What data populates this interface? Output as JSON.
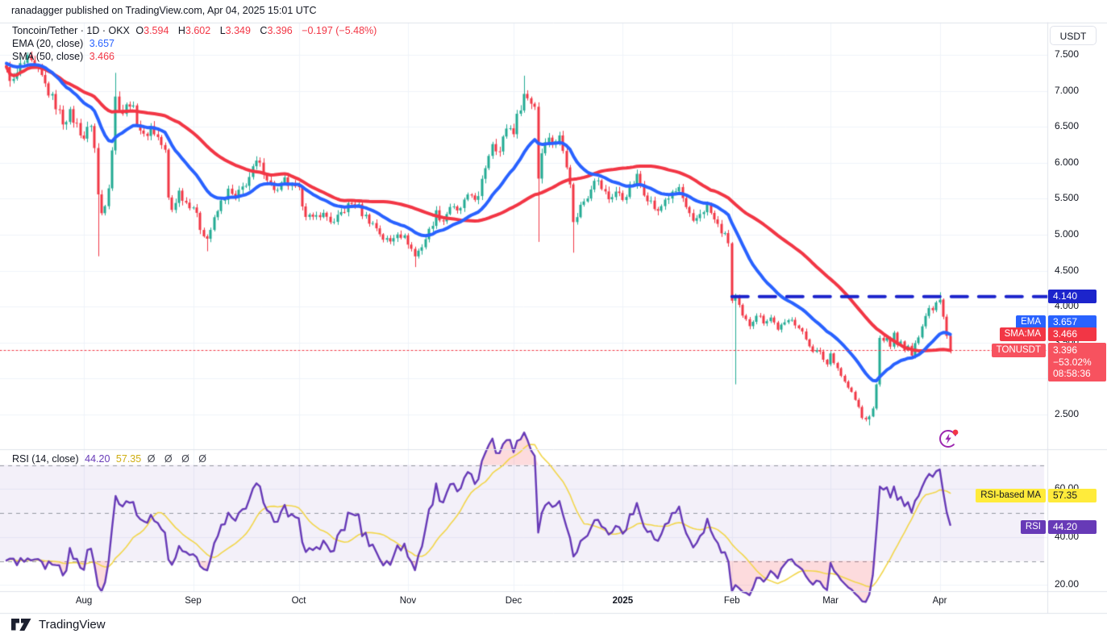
{
  "header": {
    "published_line": "ranadagger published on TradingView.com, Apr 04, 2025 15:01 UTC"
  },
  "symbol_legend": {
    "title": "Toncoin/Tether · 1D · OKX",
    "o_label": "O",
    "o": "3.594",
    "h_label": "H",
    "h": "3.602",
    "l_label": "L",
    "l": "3.349",
    "c_label": "C",
    "c": "3.396",
    "change": "−0.197 (−5.48%)",
    "ema_label": "EMA (20, close)",
    "ema_value": "3.657",
    "sma_label": "SMA (50, close)",
    "sma_value": "3.466"
  },
  "rsi_legend": {
    "label": "RSI (14, close)",
    "rsi_value": "44.20",
    "ma_value": "57.35",
    "empty_values": "Ø Ø Ø Ø"
  },
  "price_axis": {
    "currency_button": "USDT",
    "ticks": [
      {
        "label": "7.500",
        "price": 7.5
      },
      {
        "label": "7.000",
        "price": 7.0
      },
      {
        "label": "6.500",
        "price": 6.5
      },
      {
        "label": "6.000",
        "price": 6.0
      },
      {
        "label": "5.500",
        "price": 5.5
      },
      {
        "label": "5.000",
        "price": 5.0
      },
      {
        "label": "4.500",
        "price": 4.5
      },
      {
        "label": "4.000",
        "price": 4.0
      },
      {
        "label": "3.500",
        "price": 3.5
      },
      {
        "label": "3.000",
        "price": 3.0
      },
      {
        "label": "2.500",
        "price": 2.5
      }
    ]
  },
  "rsi_axis": {
    "ticks": [
      {
        "label": "60.00",
        "value": 60
      },
      {
        "label": "40.00",
        "value": 40
      },
      {
        "label": "20.00",
        "value": 20
      }
    ]
  },
  "price_labels": {
    "level": {
      "text": "4.140",
      "price": 4.14
    },
    "ema": {
      "tag": "EMA",
      "text": "3.657"
    },
    "sma": {
      "tag": "SMA:MA",
      "text": "3.466"
    },
    "last": {
      "tag": "TONUSDT",
      "price_text": "3.396",
      "change_text": "−53.02%",
      "countdown": "08:58:36"
    }
  },
  "rsi_labels": {
    "ma": {
      "tag": "RSI-based MA",
      "text": "57.35",
      "value": 57.35
    },
    "rsi": {
      "tag": "RSI",
      "text": "44.20",
      "value": 44.2
    }
  },
  "footer": {
    "brand": "TradingView"
  },
  "colors": {
    "up": "#22ab94",
    "down": "#f23645",
    "ema": "#2962ff",
    "sma": "#f23645",
    "rsi": "#673ab7",
    "rsi_ma": "#f2d64b",
    "level": "#1c24cc",
    "last_line": "#f23645",
    "grid": "#f0f3fa",
    "band": "rgba(103,58,183,0.08)",
    "guide": "#9598a1",
    "oversold": "rgba(242,54,69,0.18)",
    "border": "#e0e3eb",
    "label_level_bg": "#1c24cc",
    "label_ema_bg": "#2962ff",
    "label_sma_bg": "#f23645",
    "label_last_bg": "#f7525f",
    "label_rsi_bg": "#673ab7",
    "label_rsima_bg": "#ffeb3b"
  },
  "chart_data": {
    "type": "candlestick",
    "title": "Toncoin/Tether · 1D · OKX",
    "symbol": "TONUSDT",
    "exchange": "OKX",
    "interval": "1D",
    "quote_currency": "USDT",
    "price_axis_range_visible": [
      2.2,
      7.6
    ],
    "grid": true,
    "days_total": 269,
    "months": [
      {
        "label": "Aug",
        "day": 22,
        "bold": false
      },
      {
        "label": "Sep",
        "day": 53,
        "bold": false
      },
      {
        "label": "Oct",
        "day": 83,
        "bold": false
      },
      {
        "label": "Nov",
        "day": 114,
        "bold": false
      },
      {
        "label": "Dec",
        "day": 144,
        "bold": false
      },
      {
        "label": "2025",
        "day": 175,
        "bold": true
      },
      {
        "label": "Feb",
        "day": 206,
        "bold": false
      },
      {
        "label": "Mar",
        "day": 234,
        "bold": false
      },
      {
        "label": "Apr",
        "day": 265,
        "bold": false
      }
    ],
    "close_anchors": [
      [
        0,
        7.28
      ],
      [
        2,
        7.12
      ],
      [
        4,
        7.34
      ],
      [
        6,
        7.42
      ],
      [
        8,
        7.3
      ],
      [
        10,
        7.18
      ],
      [
        12,
        6.98
      ],
      [
        14,
        6.8
      ],
      [
        16,
        6.58
      ],
      [
        18,
        6.68
      ],
      [
        20,
        6.52
      ],
      [
        22,
        6.35
      ],
      [
        24,
        6.55
      ],
      [
        25,
        6.2
      ],
      [
        26,
        5.55
      ],
      [
        27,
        5.3
      ],
      [
        28,
        5.45
      ],
      [
        29,
        5.7
      ],
      [
        30,
        6.2
      ],
      [
        31,
        6.9
      ],
      [
        33,
        6.7
      ],
      [
        35,
        6.85
      ],
      [
        37,
        6.6
      ],
      [
        39,
        6.35
      ],
      [
        41,
        6.5
      ],
      [
        43,
        6.35
      ],
      [
        45,
        6.15
      ],
      [
        46,
        5.5
      ],
      [
        47,
        5.35
      ],
      [
        49,
        5.6
      ],
      [
        51,
        5.45
      ],
      [
        53,
        5.4
      ],
      [
        55,
        5.1
      ],
      [
        57,
        4.95
      ],
      [
        59,
        5.2
      ],
      [
        61,
        5.45
      ],
      [
        63,
        5.6
      ],
      [
        65,
        5.5
      ],
      [
        67,
        5.65
      ],
      [
        69,
        5.8
      ],
      [
        71,
        6.0
      ],
      [
        73,
        5.9
      ],
      [
        75,
        5.7
      ],
      [
        77,
        5.6
      ],
      [
        79,
        5.75
      ],
      [
        81,
        5.65
      ],
      [
        83,
        5.6
      ],
      [
        85,
        5.3
      ],
      [
        87,
        5.2
      ],
      [
        89,
        5.3
      ],
      [
        91,
        5.25
      ],
      [
        93,
        5.15
      ],
      [
        95,
        5.3
      ],
      [
        97,
        5.4
      ],
      [
        99,
        5.45
      ],
      [
        101,
        5.3
      ],
      [
        103,
        5.2
      ],
      [
        105,
        5.1
      ],
      [
        107,
        4.95
      ],
      [
        109,
        4.9
      ],
      [
        111,
        5.05
      ],
      [
        113,
        4.95
      ],
      [
        114,
        4.9
      ],
      [
        116,
        4.7
      ],
      [
        118,
        4.85
      ],
      [
        120,
        5.05
      ],
      [
        122,
        5.3
      ],
      [
        124,
        5.2
      ],
      [
        126,
        5.4
      ],
      [
        128,
        5.3
      ],
      [
        130,
        5.45
      ],
      [
        132,
        5.55
      ],
      [
        134,
        5.5
      ],
      [
        136,
        5.95
      ],
      [
        138,
        6.3
      ],
      [
        140,
        6.15
      ],
      [
        142,
        6.5
      ],
      [
        144,
        6.45
      ],
      [
        146,
        6.8
      ],
      [
        147,
        6.95
      ],
      [
        149,
        6.85
      ],
      [
        150,
        6.8
      ],
      [
        151,
        5.8
      ],
      [
        152,
        6.15
      ],
      [
        153,
        6.35
      ],
      [
        155,
        6.3
      ],
      [
        157,
        6.35
      ],
      [
        159,
        6.0
      ],
      [
        160,
        5.75
      ],
      [
        161,
        5.15
      ],
      [
        163,
        5.4
      ],
      [
        165,
        5.55
      ],
      [
        167,
        5.8
      ],
      [
        169,
        5.65
      ],
      [
        171,
        5.5
      ],
      [
        173,
        5.6
      ],
      [
        175,
        5.5
      ],
      [
        177,
        5.65
      ],
      [
        179,
        5.8
      ],
      [
        181,
        5.6
      ],
      [
        183,
        5.45
      ],
      [
        185,
        5.3
      ],
      [
        187,
        5.5
      ],
      [
        189,
        5.55
      ],
      [
        191,
        5.65
      ],
      [
        193,
        5.35
      ],
      [
        195,
        5.15
      ],
      [
        197,
        5.3
      ],
      [
        199,
        5.4
      ],
      [
        201,
        5.2
      ],
      [
        203,
        5.05
      ],
      [
        205,
        4.9
      ],
      [
        206,
        4.08
      ],
      [
        207,
        4.12
      ],
      [
        209,
        3.85
      ],
      [
        211,
        3.75
      ],
      [
        213,
        3.9
      ],
      [
        215,
        3.8
      ],
      [
        217,
        3.85
      ],
      [
        219,
        3.7
      ],
      [
        221,
        3.75
      ],
      [
        223,
        3.85
      ],
      [
        225,
        3.7
      ],
      [
        227,
        3.55
      ],
      [
        229,
        3.4
      ],
      [
        231,
        3.35
      ],
      [
        233,
        3.2
      ],
      [
        234,
        3.35
      ],
      [
        236,
        3.15
      ],
      [
        238,
        2.95
      ],
      [
        240,
        2.8
      ],
      [
        242,
        2.6
      ],
      [
        243,
        2.45
      ],
      [
        245,
        2.45
      ],
      [
        246,
        2.6
      ],
      [
        247,
        2.9
      ],
      [
        248,
        3.6
      ],
      [
        249,
        3.5
      ],
      [
        250,
        3.55
      ],
      [
        251,
        3.45
      ],
      [
        252,
        3.6
      ],
      [
        253,
        3.5
      ],
      [
        254,
        3.55
      ],
      [
        255,
        3.4
      ],
      [
        256,
        3.45
      ],
      [
        257,
        3.35
      ],
      [
        258,
        3.5
      ],
      [
        259,
        3.6
      ],
      [
        260,
        3.75
      ],
      [
        261,
        3.9
      ],
      [
        262,
        4.0
      ],
      [
        263,
        3.95
      ],
      [
        264,
        4.05
      ],
      [
        265,
        4.08
      ],
      [
        266,
        3.85
      ],
      [
        267,
        3.594
      ],
      [
        268,
        3.396
      ]
    ],
    "wick_events": [
      {
        "day": 26,
        "low": 4.7
      },
      {
        "day": 31,
        "high": 7.25
      },
      {
        "day": 57,
        "low": 4.77
      },
      {
        "day": 116,
        "low": 4.55
      },
      {
        "day": 147,
        "high": 7.21
      },
      {
        "day": 151,
        "low": 4.9
      },
      {
        "day": 161,
        "low": 4.75
      },
      {
        "day": 207,
        "low": 2.92
      },
      {
        "day": 245,
        "low": 2.35
      },
      {
        "day": 265,
        "high": 4.2
      }
    ],
    "last_candle": {
      "open": 3.594,
      "high": 3.602,
      "low": 3.349,
      "close": 3.396
    },
    "overlays": [
      {
        "type": "ema",
        "period": 20,
        "last_value": 3.657,
        "color": "#2962ff"
      },
      {
        "type": "sma",
        "period": 50,
        "last_value": 3.466,
        "color": "#f23645"
      }
    ],
    "key_levels": {
      "resistance_dashed_line": {
        "price": 4.14,
        "starts_day": 206
      },
      "last_price_dotted_line": 3.396
    },
    "oscillator": {
      "type": "rsi",
      "period": 14,
      "ma_period": 14,
      "last_value": 44.2,
      "ma_last_value": 57.35,
      "guides": [
        70,
        50,
        30
      ],
      "band": [
        30,
        70
      ],
      "axis_ticks": [
        60,
        40,
        20
      ]
    }
  }
}
